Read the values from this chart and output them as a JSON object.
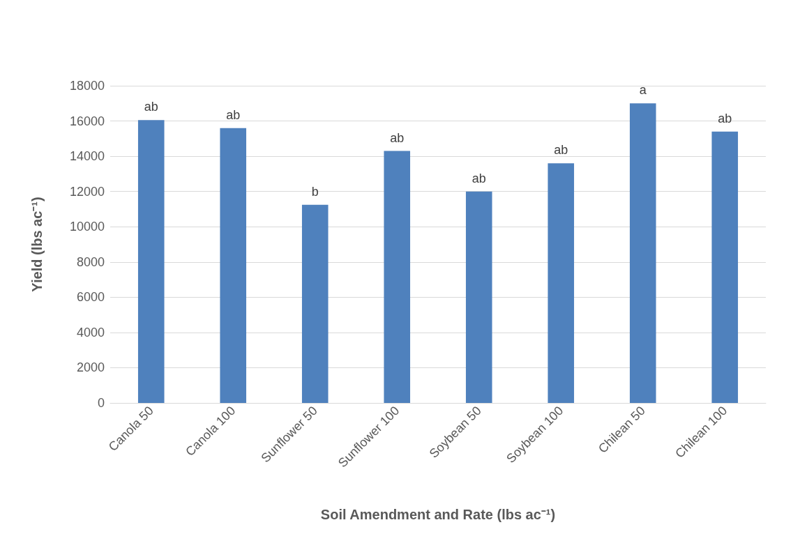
{
  "chart_data": {
    "type": "bar",
    "xlabel": "Soil Amendment and Rate (lbs ac⁻¹)",
    "ylabel": "Yield (lbs ac⁻¹)",
    "categories": [
      "Canola 50",
      "Canola 100",
      "Sunflower 50",
      "Sunflower 100",
      "Soybean 50",
      "Soybean 100",
      "Chilean 50",
      "Chilean 100"
    ],
    "values": [
      16050,
      15600,
      11250,
      14300,
      12000,
      13600,
      17000,
      15400
    ],
    "color": "#4f81bd",
    "ylim": [
      0,
      18000
    ],
    "yticks": [
      0,
      2000,
      4000,
      6000,
      8000,
      10000,
      12000,
      14000,
      16000,
      18000
    ],
    "grid": "y",
    "annotations": [
      {
        "text": "ab",
        "x": "Canola 50",
        "y": 16050
      },
      {
        "text": "ab",
        "x": "Canola 100",
        "y": 15600
      },
      {
        "text": "b",
        "x": "Sunflower 50",
        "y": 11250
      },
      {
        "text": "ab",
        "x": "Sunflower 100",
        "y": 14300
      },
      {
        "text": "ab",
        "x": "Soybean 50",
        "y": 12000
      },
      {
        "text": "ab",
        "x": "Soybean 100",
        "y": 13600
      },
      {
        "text": "a",
        "x": "Chilean 50",
        "y": 17000
      },
      {
        "text": "ab",
        "x": "Chilean 100",
        "y": 15400
      }
    ]
  }
}
